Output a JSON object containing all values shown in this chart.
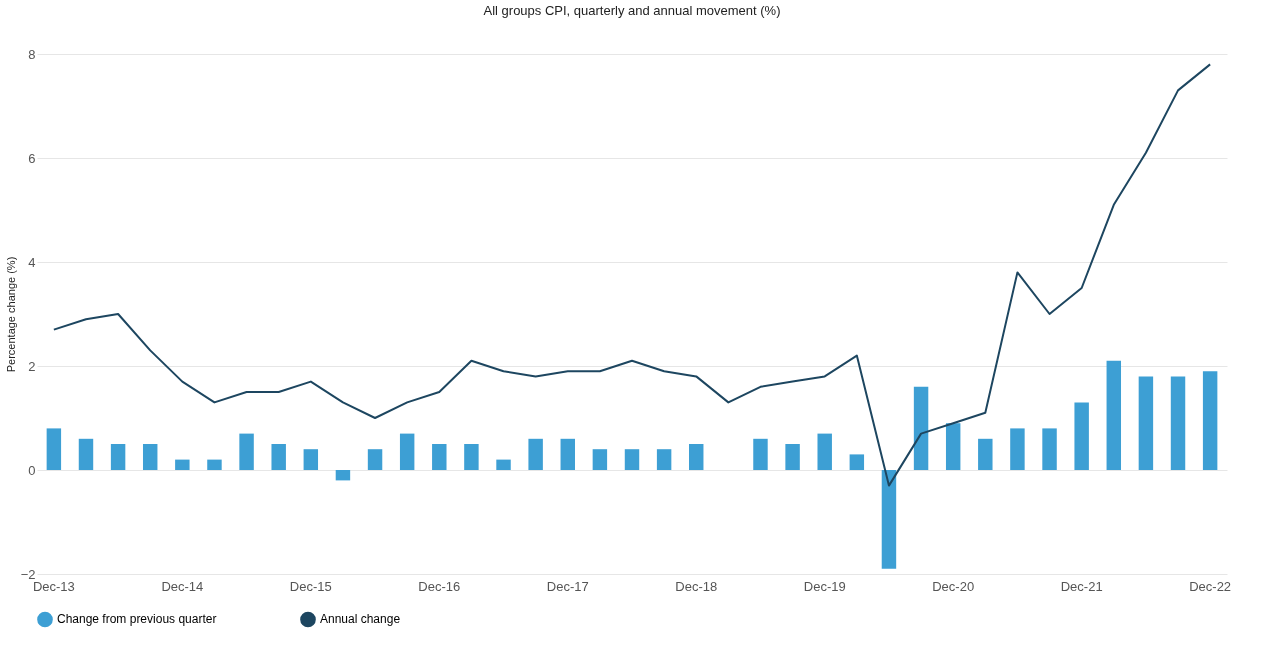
{
  "chart_data": {
    "type": "bar",
    "title": "All groups CPI, quarterly and annual movement (%)",
    "ylabel": "Percentage change (%)",
    "categories": [
      "Dec-13",
      null,
      null,
      null,
      "Dec-14",
      null,
      null,
      null,
      "Dec-15",
      null,
      null,
      null,
      "Dec-16",
      null,
      null,
      null,
      "Dec-17",
      null,
      null,
      null,
      "Dec-18",
      null,
      null,
      null,
      "Dec-19",
      null,
      null,
      null,
      "Dec-20",
      null,
      null,
      null,
      "Dec-21",
      null,
      null,
      null,
      "Dec-22"
    ],
    "series": [
      {
        "name": "Change from previous quarter",
        "color": "#3d9fd4",
        "values": [
          0.8,
          0.6,
          0.5,
          0.5,
          0.2,
          0.2,
          0.7,
          0.5,
          0.4,
          -0.2,
          0.4,
          0.7,
          0.5,
          0.5,
          0.2,
          0.6,
          0.6,
          0.4,
          0.4,
          0.4,
          0.5,
          0.0,
          0.6,
          0.5,
          0.7,
          0.3,
          -1.9,
          1.6,
          0.9,
          0.6,
          0.8,
          0.8,
          1.3,
          2.1,
          1.8,
          1.8,
          1.9
        ]
      },
      {
        "name": "Annual change",
        "type": "line",
        "color": "#1d4660",
        "values": [
          2.7,
          2.9,
          3.0,
          2.3,
          1.7,
          1.3,
          1.5,
          1.5,
          1.7,
          1.3,
          1.0,
          1.3,
          1.5,
          2.1,
          1.9,
          1.8,
          1.9,
          1.9,
          2.1,
          1.9,
          1.8,
          1.3,
          1.6,
          1.7,
          1.8,
          2.2,
          -0.3,
          0.7,
          0.9,
          1.1,
          3.8,
          3.0,
          3.5,
          5.1,
          6.1,
          7.3,
          7.8
        ]
      }
    ],
    "ylim": [
      -2,
      8
    ],
    "yticks": [
      -2,
      0,
      2,
      4,
      6,
      8
    ],
    "grid": "y",
    "legend": "bottom"
  }
}
